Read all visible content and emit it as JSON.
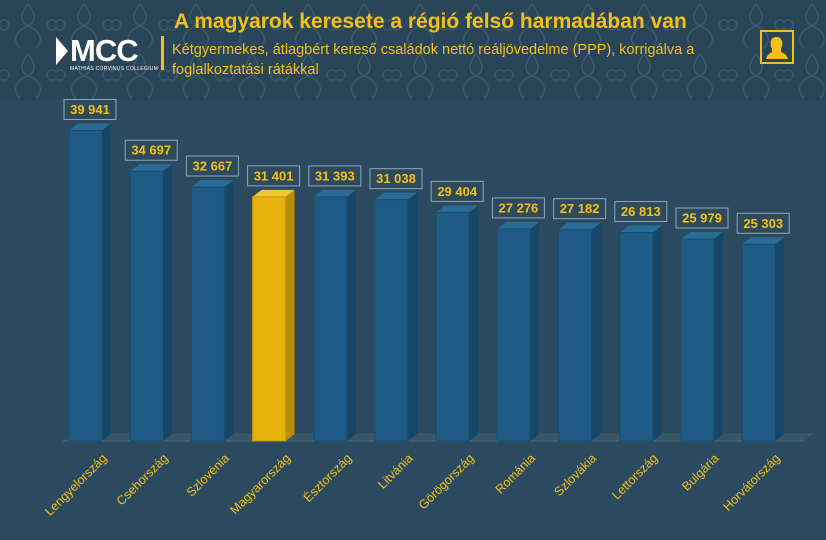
{
  "header": {
    "title": "A magyarok keresete a régió felső harmadában van",
    "subtitle": "Kétgyermekes, átlagbért kereső családok nettó reáljövedelme (PPP), korrigálva a foglalkoztatási rátákkal"
  },
  "logo": {
    "text": "MCC",
    "subtext": "MATHIAS CORVINUS COLLEGIUM",
    "icon": "mcc-logo-icon"
  },
  "corner_icon": "profile-silhouette-icon",
  "colors": {
    "background": "#2c4a5f",
    "bar": "#1d5b84",
    "bar_highlight": "#e6b20e",
    "label_text": "#f2c019",
    "label_box": "#2f4a5c",
    "label_border": "#8fa9b8",
    "floor": "#3a5769",
    "category_text": "#f2c019"
  },
  "chart_data": {
    "type": "bar",
    "title": "A magyarok keresete a régió felső harmadában van",
    "subtitle": "Kétgyermekes, átlagbért kereső családok nettó reáljövedelme (PPP), korrigálva a foglalkoztatási rátákkal",
    "xlabel": "",
    "ylabel": "",
    "categories": [
      "Lengyelország",
      "Csehország",
      "Szlovénia",
      "Magyarország",
      "Észtország",
      "Litvánia",
      "Görögország",
      "Románia",
      "Szlovákia",
      "Lettország",
      "Bulgária",
      "Horvátország"
    ],
    "values": [
      39941,
      34697,
      32667,
      31401,
      31393,
      31038,
      29404,
      27276,
      27182,
      26813,
      25979,
      25303
    ],
    "value_labels": [
      "39 941",
      "34 697",
      "32 667",
      "31 401",
      "31 393",
      "31 038",
      "29 404",
      "27 276",
      "27 182",
      "26 813",
      "25 979",
      "25 303"
    ],
    "highlight": "Magyarország",
    "ylim": [
      0,
      40000
    ],
    "grid": false,
    "legend": "none"
  }
}
